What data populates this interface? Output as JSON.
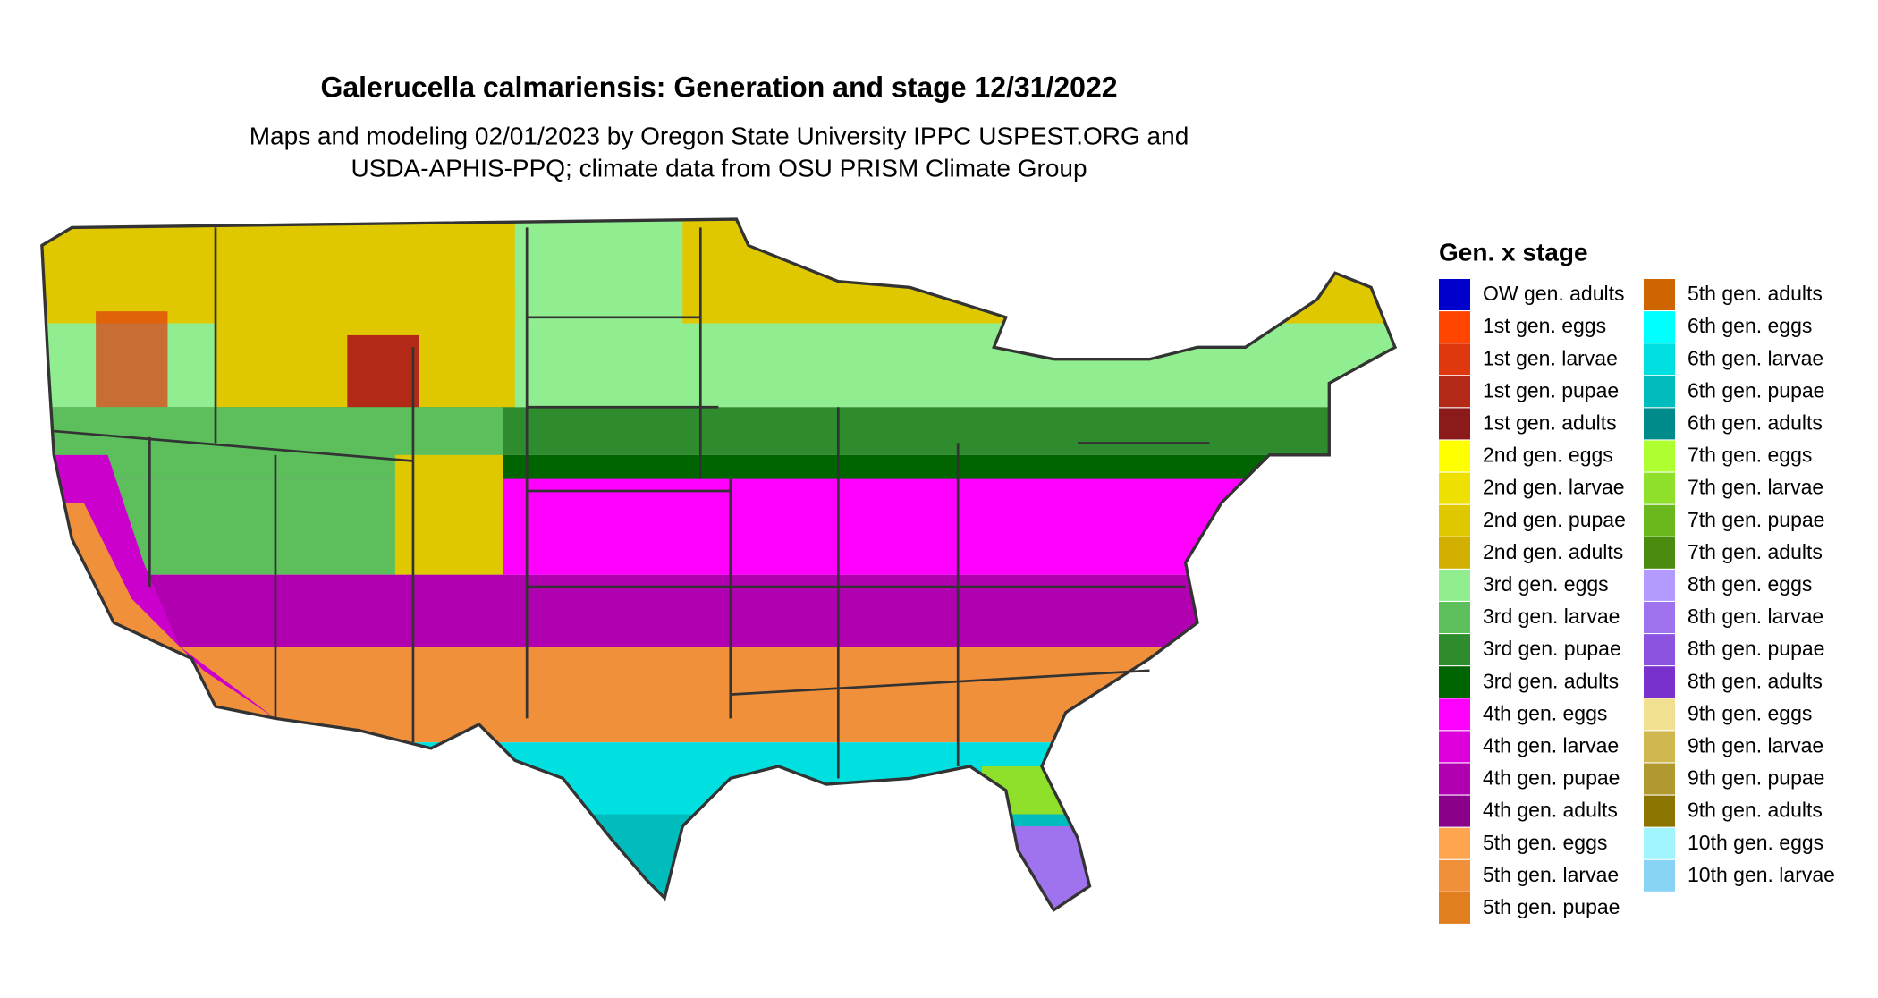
{
  "header": {
    "title": "Galerucella calmariensis: Generation and stage 12/31/2022",
    "subtitle": [
      "Maps and modeling 02/01/2023 by Oregon State University IPPC USPEST.ORG and",
      "USDA-APHIS-PPQ; climate data from OSU PRISM Climate Group"
    ]
  },
  "legend": {
    "title": "Gen. x stage",
    "items": [
      {
        "label": "OW gen. adults",
        "color": "#0000cd"
      },
      {
        "label": "1st gen. eggs",
        "color": "#ff4500"
      },
      {
        "label": "1st gen. larvae",
        "color": "#e0380e"
      },
      {
        "label": "1st gen. pupae",
        "color": "#b22a17"
      },
      {
        "label": "1st gen. adults",
        "color": "#8b1a1a"
      },
      {
        "label": "2nd gen. eggs",
        "color": "#ffff00"
      },
      {
        "label": "2nd gen. larvae",
        "color": "#eee000"
      },
      {
        "label": "2nd gen. pupae",
        "color": "#e0c800"
      },
      {
        "label": "2nd gen. adults",
        "color": "#d2b000"
      },
      {
        "label": "3rd gen. eggs",
        "color": "#90ee90"
      },
      {
        "label": "3rd gen. larvae",
        "color": "#5cbf5c"
      },
      {
        "label": "3rd gen. pupae",
        "color": "#2e8b2e"
      },
      {
        "label": "3rd gen. adults",
        "color": "#006400"
      },
      {
        "label": "4th gen. eggs",
        "color": "#ff00ff"
      },
      {
        "label": "4th gen. larvae",
        "color": "#dd00dd"
      },
      {
        "label": "4th gen. pupae",
        "color": "#b000b0"
      },
      {
        "label": "4th gen. adults",
        "color": "#8b008b"
      },
      {
        "label": "5th gen. eggs",
        "color": "#ffa54f"
      },
      {
        "label": "5th gen. larvae",
        "color": "#f0903a"
      },
      {
        "label": "5th gen. pupae",
        "color": "#e07e20"
      },
      {
        "label": "5th gen. adults",
        "color": "#cd6600"
      },
      {
        "label": "6th gen. eggs",
        "color": "#00ffff"
      },
      {
        "label": "6th gen. larvae",
        "color": "#00e0e0"
      },
      {
        "label": "6th gen. pupae",
        "color": "#00bcbc"
      },
      {
        "label": "6th gen. adults",
        "color": "#008b8b"
      },
      {
        "label": "7th gen. eggs",
        "color": "#adff2f"
      },
      {
        "label": "7th gen. larvae",
        "color": "#8ee02a"
      },
      {
        "label": "7th gen. pupae",
        "color": "#6ab81e"
      },
      {
        "label": "7th gen. adults",
        "color": "#4a8b10"
      },
      {
        "label": "8th gen. eggs",
        "color": "#b39aff"
      },
      {
        "label": "8th gen. larvae",
        "color": "#9f72ee"
      },
      {
        "label": "8th gen. pupae",
        "color": "#8c52e0"
      },
      {
        "label": "8th gen. adults",
        "color": "#7a30cc"
      },
      {
        "label": "9th gen. eggs",
        "color": "#f0e090"
      },
      {
        "label": "9th gen. larvae",
        "color": "#d0b850"
      },
      {
        "label": "9th gen. pupae",
        "color": "#b09a30"
      },
      {
        "label": "9th gen. adults",
        "color": "#8b7500"
      },
      {
        "label": "10th gen. eggs",
        "color": "#a0f5ff"
      },
      {
        "label": "10th gen. larvae",
        "color": "#87d4f5"
      }
    ]
  }
}
